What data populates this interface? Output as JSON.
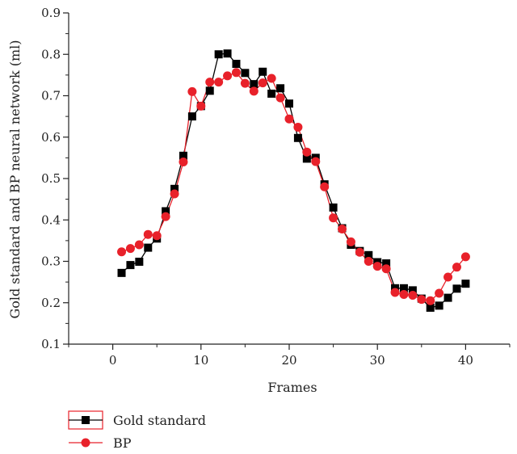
{
  "chart_data": {
    "type": "line",
    "xlabel": "Frames",
    "ylabel": "Gold standard and BP neural network (ml)",
    "xlim": [
      -5,
      45
    ],
    "ylim": [
      0.1,
      0.9
    ],
    "xticks": [
      0,
      10,
      20,
      30,
      40
    ],
    "yticks": [
      0.1,
      0.2,
      0.3,
      0.4,
      0.5,
      0.6,
      0.7,
      0.8,
      0.9
    ],
    "xtick_labels": [
      "0",
      "10",
      "20",
      "30",
      "40"
    ],
    "ytick_labels": [
      "0.1",
      "0.2",
      "0.3",
      "0.4",
      "0.5",
      "0.6",
      "0.7",
      "0.8",
      "0.9"
    ],
    "legend_position": "bottom-left",
    "x": [
      1,
      2,
      3,
      4,
      5,
      6,
      7,
      8,
      9,
      10,
      11,
      12,
      13,
      14,
      15,
      16,
      17,
      18,
      19,
      20,
      21,
      22,
      23,
      24,
      25,
      26,
      27,
      28,
      29,
      30,
      31,
      32,
      33,
      34,
      35,
      36,
      37,
      38,
      39,
      40
    ],
    "series": [
      {
        "name": "Gold standard",
        "color": "#000000",
        "marker": "square",
        "values": [
          0.272,
          0.291,
          0.299,
          0.333,
          0.355,
          0.421,
          0.475,
          0.555,
          0.65,
          0.675,
          0.712,
          0.8,
          0.802,
          0.777,
          0.755,
          0.728,
          0.758,
          0.705,
          0.718,
          0.681,
          0.598,
          0.548,
          0.55,
          0.486,
          0.43,
          0.38,
          0.34,
          0.325,
          0.315,
          0.298,
          0.295,
          0.235,
          0.235,
          0.23,
          0.21,
          0.188,
          0.193,
          0.212,
          0.234,
          0.246
        ]
      },
      {
        "name": "BP",
        "color": "#e8212a",
        "marker": "circle",
        "values": [
          0.323,
          0.331,
          0.34,
          0.365,
          0.362,
          0.408,
          0.463,
          0.54,
          0.71,
          0.675,
          0.733,
          0.733,
          0.748,
          0.756,
          0.73,
          0.711,
          0.731,
          0.742,
          0.695,
          0.644,
          0.624,
          0.564,
          0.541,
          0.48,
          0.405,
          0.378,
          0.347,
          0.322,
          0.3,
          0.288,
          0.282,
          0.225,
          0.22,
          0.218,
          0.208,
          0.205,
          0.223,
          0.262,
          0.286,
          0.311
        ]
      }
    ]
  }
}
